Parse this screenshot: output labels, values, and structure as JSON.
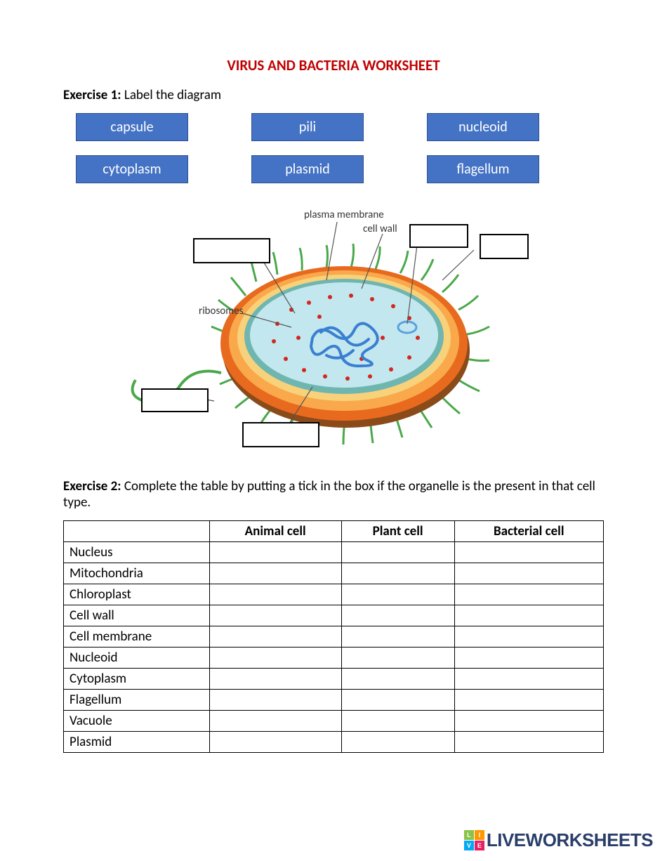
{
  "title": "VIRUS AND BACTERIA WORKSHEET",
  "title_color": "#c00000",
  "exercise1": {
    "label": "Exercise 1:",
    "text": " Label the diagram"
  },
  "labels": {
    "row1": [
      "capsule",
      "pili",
      "nucleoid"
    ],
    "row2": [
      "cytoplasm",
      "plasmid",
      "flagellum"
    ],
    "bg_color": "#4472c4",
    "border_color": "#2f528f",
    "text_color": "#ffffff"
  },
  "diagram": {
    "fixed_labels": {
      "plasma_membrane": "plasma membrane",
      "cell_wall": "cell wall",
      "ribosomes": "ribosomes"
    },
    "colors": {
      "capsule_outer": "#e86a1e",
      "capsule_inner": "#f9a94b",
      "cell_wall": "#f8d27a",
      "membrane": "#6fb6b0",
      "cytoplasm": "#c3e7ee",
      "nucleoid": "#3a7fd1",
      "plasmid": "#5aa0e0",
      "ribosome": "#d4261f",
      "pili_flagellum": "#4aa84a",
      "shadow": "#8a4a1a"
    }
  },
  "exercise2": {
    "label": "Exercise 2:",
    "text": " Complete the table by putting a tick in the box if the organelle is the present in that cell type."
  },
  "table": {
    "columns": [
      "",
      "Animal cell",
      "Plant cell",
      "Bacterial cell"
    ],
    "rows": [
      "Nucleus",
      "Mitochondria",
      "Chloroplast",
      "Cell wall",
      "Cell membrane",
      "Nucleoid",
      "Cytoplasm",
      "Flagellum",
      "Vacuole",
      "Plasmid"
    ]
  },
  "watermark": {
    "text": "LIVEWORKSHEETS",
    "cells": [
      {
        "t": "L",
        "c": "#8bc34a"
      },
      {
        "t": "I",
        "c": "#ff9800"
      },
      {
        "t": "V",
        "c": "#03a9f4"
      },
      {
        "t": "E",
        "c": "#e91e63"
      }
    ],
    "text_color": "#2a3e6a"
  }
}
